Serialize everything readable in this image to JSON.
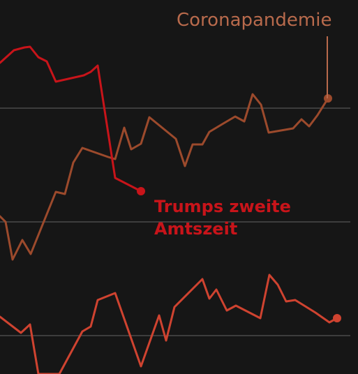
{
  "chart_data": {
    "type": "line",
    "title": "",
    "xlabel": "",
    "ylabel": "",
    "grid": true,
    "annotations": {
      "corona": "Coronapandemie",
      "trump_line1": "Trumps zweite",
      "trump_line2": "Amtszeit"
    },
    "series": [
      {
        "color": "#c8141a",
        "points": [
          [
            0,
            90
          ],
          [
            20,
            72
          ],
          [
            35,
            68
          ],
          [
            43,
            67
          ],
          [
            55,
            82
          ],
          [
            67,
            88
          ],
          [
            80,
            117
          ],
          [
            120,
            108
          ],
          [
            130,
            103
          ],
          [
            140,
            94
          ],
          [
            165,
            255
          ],
          [
            202,
            274
          ]
        ]
      },
      {
        "color": "#9c4a2c",
        "points": [
          [
            0,
            310
          ],
          [
            8,
            318
          ],
          [
            18,
            372
          ],
          [
            32,
            344
          ],
          [
            44,
            364
          ],
          [
            80,
            275
          ],
          [
            93,
            278
          ],
          [
            105,
            233
          ],
          [
            118,
            212
          ],
          [
            155,
            225
          ],
          [
            165,
            228
          ],
          [
            178,
            183
          ],
          [
            188,
            214
          ],
          [
            202,
            206
          ],
          [
            214,
            168
          ],
          [
            252,
            199
          ],
          [
            265,
            238
          ],
          [
            276,
            207
          ],
          [
            290,
            207
          ],
          [
            300,
            189
          ],
          [
            320,
            177
          ],
          [
            337,
            167
          ],
          [
            350,
            174
          ],
          [
            362,
            135
          ],
          [
            374,
            150
          ],
          [
            385,
            190
          ],
          [
            420,
            184
          ],
          [
            432,
            171
          ],
          [
            443,
            181
          ],
          [
            455,
            165
          ],
          [
            470,
            141
          ]
        ]
      },
      {
        "color": "#cf4330",
        "points": [
          [
            0,
            454
          ],
          [
            30,
            477
          ],
          [
            43,
            465
          ],
          [
            55,
            536
          ],
          [
            85,
            536
          ],
          [
            118,
            475
          ],
          [
            130,
            468
          ],
          [
            140,
            430
          ],
          [
            165,
            420
          ],
          [
            202,
            525
          ],
          [
            228,
            452
          ],
          [
            238,
            488
          ],
          [
            250,
            440
          ],
          [
            290,
            400
          ],
          [
            300,
            428
          ],
          [
            310,
            415
          ],
          [
            325,
            445
          ],
          [
            338,
            438
          ],
          [
            373,
            456
          ],
          [
            386,
            394
          ],
          [
            398,
            408
          ],
          [
            410,
            432
          ],
          [
            423,
            430
          ],
          [
            452,
            448
          ],
          [
            472,
            462
          ],
          [
            483,
            456
          ]
        ]
      }
    ]
  }
}
